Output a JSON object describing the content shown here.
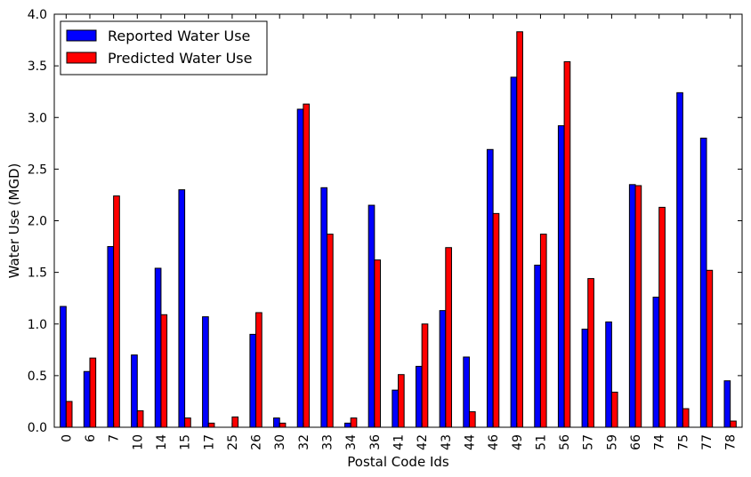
{
  "chart_data": {
    "type": "bar",
    "title": "",
    "xlabel": "Postal Code Ids",
    "ylabel": "Water Use (MGD)",
    "ylim": [
      0,
      4.0
    ],
    "yticks": [
      "0.0",
      "0.5",
      "1.0",
      "1.5",
      "2.0",
      "2.5",
      "3.0",
      "3.5",
      "4.0"
    ],
    "categories": [
      "0",
      "6",
      "7",
      "10",
      "14",
      "15",
      "17",
      "25",
      "26",
      "30",
      "32",
      "33",
      "34",
      "36",
      "41",
      "42",
      "43",
      "44",
      "46",
      "49",
      "51",
      "56",
      "57",
      "59",
      "66",
      "74",
      "75",
      "77",
      "78"
    ],
    "legend_position": "top-left",
    "series": [
      {
        "name": "Reported Water Use",
        "color": "#0000ff",
        "values": [
          1.17,
          0.54,
          1.75,
          0.7,
          1.54,
          2.3,
          1.07,
          0.0,
          0.9,
          0.09,
          3.08,
          2.32,
          0.04,
          2.15,
          0.36,
          0.59,
          1.13,
          0.68,
          2.69,
          3.39,
          1.57,
          2.92,
          0.95,
          1.02,
          2.35,
          1.26,
          3.24,
          2.8,
          0.45
        ]
      },
      {
        "name": "Predicted Water Use",
        "color": "#ff0000",
        "values": [
          0.25,
          0.67,
          2.24,
          0.16,
          1.09,
          0.09,
          0.04,
          0.1,
          1.11,
          0.04,
          3.13,
          1.87,
          0.09,
          1.62,
          0.51,
          1.0,
          1.74,
          0.15,
          2.07,
          3.83,
          1.87,
          3.54,
          1.44,
          0.34,
          2.34,
          2.13,
          0.18,
          1.52,
          0.06
        ]
      }
    ]
  }
}
